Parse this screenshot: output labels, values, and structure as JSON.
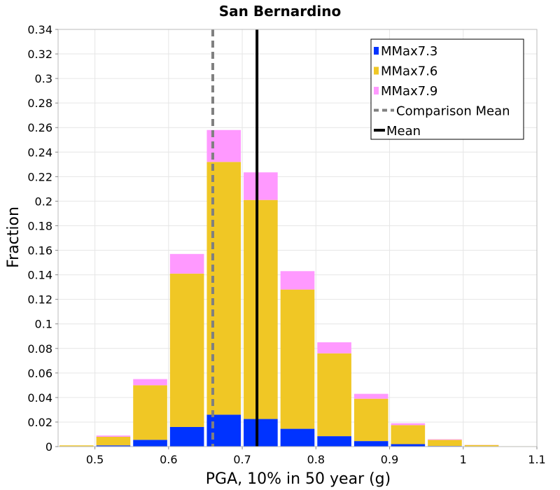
{
  "chart_data": {
    "type": "bar",
    "stacked": true,
    "title": "San Bernardino",
    "xlabel": "PGA, 10% in 50 year (g)",
    "ylabel": "Fraction",
    "xlim": [
      0.45,
      1.1
    ],
    "ylim": [
      0,
      0.34
    ],
    "xticks": [
      "0.5",
      "0.6",
      "0.7",
      "0.8",
      "0.9",
      "1",
      "1.1"
    ],
    "yticks": [
      "0",
      "0.02",
      "0.04",
      "0.06",
      "0.08",
      "0.1",
      "0.12",
      "0.14",
      "0.16",
      "0.18",
      "0.2",
      "0.22",
      "0.24",
      "0.26",
      "0.28",
      "0.3",
      "0.32",
      "0.34"
    ],
    "bin_width": 0.05,
    "x": [
      0.45,
      0.5,
      0.55,
      0.6,
      0.65,
      0.7,
      0.75,
      0.8,
      0.85,
      0.9,
      0.95,
      1.0,
      1.05
    ],
    "series": [
      {
        "name": "MMax7.3",
        "color": "#0033ff",
        "values": [
          0.0003,
          0.001,
          0.0055,
          0.016,
          0.026,
          0.0225,
          0.0145,
          0.0085,
          0.0045,
          0.002,
          0.0005,
          0.0001,
          0.0
        ]
      },
      {
        "name": "MMax7.6",
        "color": "#f0c725",
        "values": [
          0.0007,
          0.007,
          0.0445,
          0.125,
          0.206,
          0.1785,
          0.1135,
          0.0675,
          0.0345,
          0.0155,
          0.005,
          0.0012,
          0.0003
        ]
      },
      {
        "name": "MMax7.9",
        "color": "#ff99ff",
        "values": [
          0.0,
          0.001,
          0.005,
          0.016,
          0.026,
          0.0225,
          0.015,
          0.009,
          0.004,
          0.0015,
          0.0005,
          0.0001,
          0.0
        ]
      }
    ],
    "lines": [
      {
        "name": "Comparison Mean",
        "x": 0.66,
        "color": "#808080",
        "style": "dashed"
      },
      {
        "name": "Mean",
        "x": 0.72,
        "color": "#000000",
        "style": "solid"
      }
    ],
    "grid": true,
    "legend_position": "top-right"
  }
}
